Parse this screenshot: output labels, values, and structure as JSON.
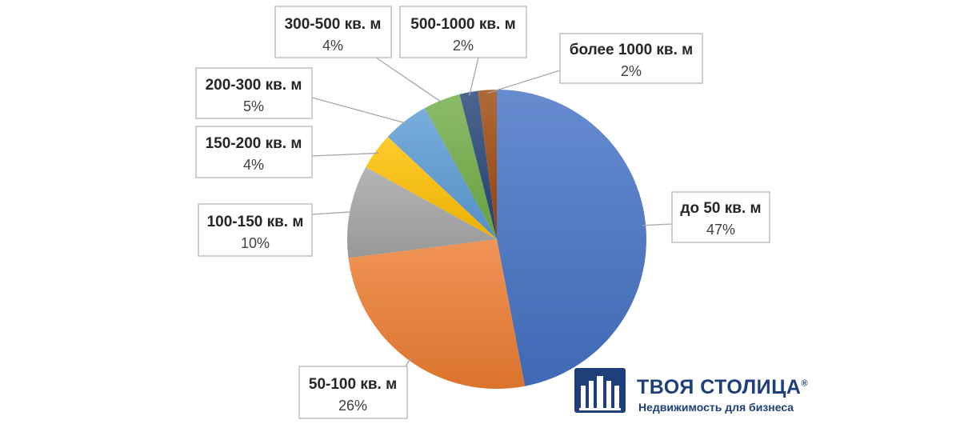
{
  "chart_data": {
    "type": "pie",
    "categories": [
      "до 50 кв. м",
      "50-100 кв. м",
      "100-150 кв. м",
      "150-200 кв. м",
      "200-300 кв. м",
      "300-500 кв. м",
      "500-1000 кв. м",
      "более 1000 кв. м"
    ],
    "values": [
      47,
      26,
      10,
      4,
      5,
      4,
      2,
      2
    ],
    "value_labels": [
      "47%",
      "26%",
      "10%",
      "4%",
      "5%",
      "4%",
      "2%",
      "2%"
    ],
    "colors": [
      "#4472c4",
      "#ed7d31",
      "#a5a5a5",
      "#ffc000",
      "#5b9bd5",
      "#70ad47",
      "#264478",
      "#9e480e"
    ],
    "start": "12 o'clock",
    "direction": "clockwise",
    "labels": "callouts with leader lines",
    "legend": "none"
  },
  "logo": {
    "brand": "ТВОЯ СТОЛИЦА",
    "registered": "®",
    "tagline": "Недвижимость для бизнеса",
    "color": "#1f3f7a"
  }
}
